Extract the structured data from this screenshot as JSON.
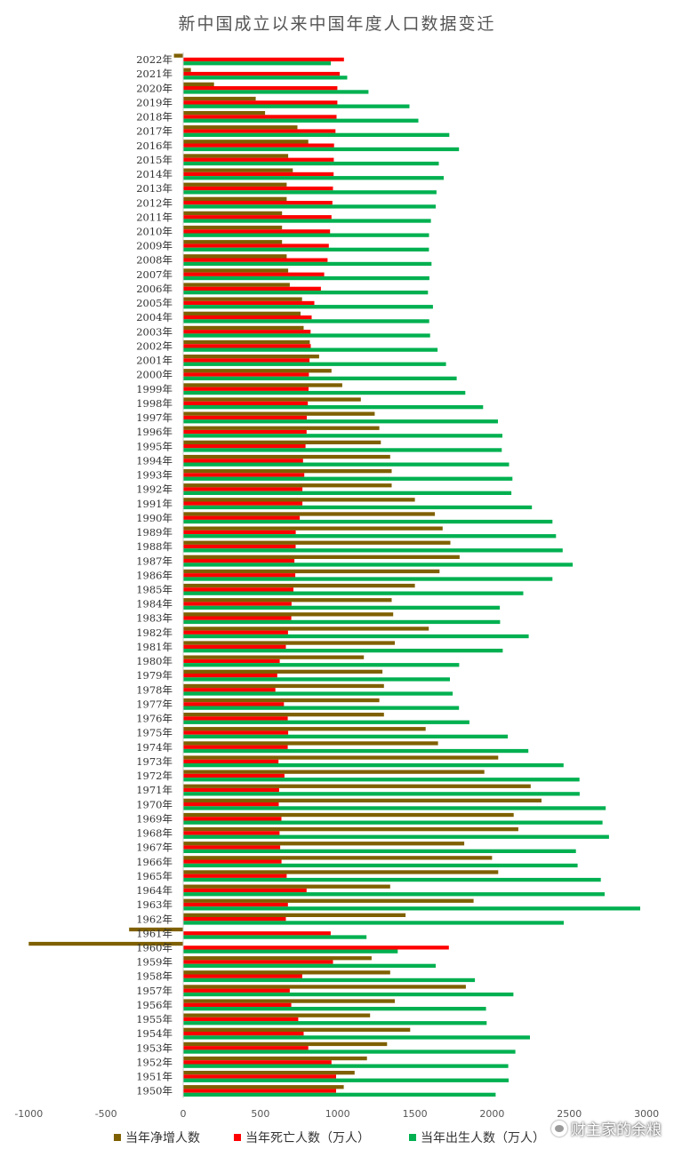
{
  "chart_data": {
    "type": "bar",
    "orientation": "horizontal",
    "title": "新中国成立以来中国年度人口数据变迁",
    "xlim": [
      -1000,
      3000
    ],
    "xticks": [
      -1000,
      -500,
      0,
      500,
      1000,
      1500,
      2000,
      2500,
      3000
    ],
    "grid": false,
    "legend_position": "bottom",
    "categories": [
      "2022年",
      "2021年",
      "2020年",
      "2019年",
      "2018年",
      "2017年",
      "2016年",
      "2015年",
      "2014年",
      "2013年",
      "2012年",
      "2011年",
      "2010年",
      "2009年",
      "2008年",
      "2007年",
      "2006年",
      "2005年",
      "2004年",
      "2003年",
      "2002年",
      "2001年",
      "2000年",
      "1999年",
      "1998年",
      "1997年",
      "1996年",
      "1995年",
      "1994年",
      "1993年",
      "1992年",
      "1991年",
      "1990年",
      "1989年",
      "1988年",
      "1987年",
      "1986年",
      "1985年",
      "1984年",
      "1983年",
      "1982年",
      "1981年",
      "1980年",
      "1979年",
      "1978年",
      "1977年",
      "1976年",
      "1975年",
      "1974年",
      "1973年",
      "1972年",
      "1971年",
      "1970年",
      "1969年",
      "1968年",
      "1967年",
      "1966年",
      "1965年",
      "1964年",
      "1963年",
      "1962年",
      "1961年",
      "1960年",
      "1959年",
      "1958年",
      "1957年",
      "1956年",
      "1955年",
      "1954年",
      "1953年",
      "1952年",
      "1951年",
      "1950年"
    ],
    "series": [
      {
        "name": "当年净增人数",
        "color": "#7f6000",
        "values": [
          -60,
          50,
          200,
          470,
          530,
          740,
          810,
          680,
          710,
          670,
          670,
          640,
          640,
          640,
          670,
          680,
          690,
          770,
          760,
          780,
          820,
          880,
          960,
          1030,
          1150,
          1240,
          1270,
          1280,
          1340,
          1350,
          1350,
          1500,
          1630,
          1680,
          1730,
          1790,
          1660,
          1500,
          1350,
          1360,
          1590,
          1370,
          1170,
          1290,
          1300,
          1270,
          1300,
          1570,
          1650,
          2040,
          1950,
          2250,
          2320,
          2140,
          2170,
          1820,
          2000,
          2040,
          1340,
          1880,
          1440,
          -350,
          -1000,
          1220,
          1340,
          1830,
          1370,
          1210,
          1470,
          1320,
          1190,
          1110,
          1040
        ]
      },
      {
        "name": "当年死亡人数（万人）",
        "color": "#ff0000",
        "values": [
          1041,
          1014,
          998,
          998,
          993,
          986,
          977,
          975,
          974,
          970,
          966,
          960,
          951,
          943,
          935,
          913,
          892,
          849,
          832,
          825,
          826,
          818,
          814,
          812,
          807,
          800,
          799,
          792,
          776,
          784,
          772,
          772,
          755,
          729,
          728,
          720,
          726,
          714,
          702,
          700,
          679,
          665,
          625,
          609,
          597,
          652,
          677,
          680,
          677,
          617,
          656,
          621,
          619,
          636,
          624,
          628,
          637,
          670,
          799,
          678,
          665,
          955,
          1720,
          970,
          771,
          690,
          700,
          745,
          780,
          810,
          960,
          990,
          990
        ]
      },
      {
        "name": "当年出生人数（万人）",
        "color": "#00b050",
        "values": [
          956,
          1062,
          1200,
          1465,
          1523,
          1723,
          1786,
          1655,
          1687,
          1640,
          1635,
          1604,
          1592,
          1591,
          1608,
          1594,
          1585,
          1617,
          1593,
          1599,
          1647,
          1702,
          1771,
          1827,
          1942,
          2038,
          2067,
          2063,
          2110,
          2132,
          2125,
          2258,
          2391,
          2414,
          2457,
          2522,
          2391,
          2202,
          2050,
          2052,
          2237,
          2069,
          1787,
          1727,
          1745,
          1786,
          1853,
          2102,
          2235,
          2463,
          2566,
          2567,
          2736,
          2715,
          2757,
          2543,
          2554,
          2704,
          2729,
          2959,
          2464,
          1187,
          1389,
          1635,
          1889,
          2138,
          1961,
          1965,
          2245,
          2151,
          2105,
          2107,
          2023
        ]
      }
    ]
  },
  "watermark": {
    "text": "财主家的余粮"
  }
}
